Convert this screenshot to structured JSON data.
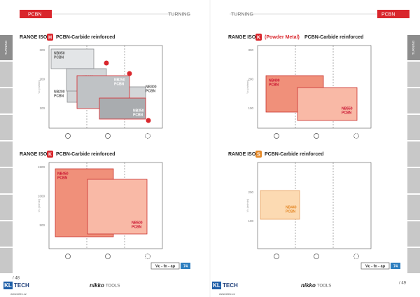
{
  "header": {
    "left": {
      "section": "PCBN",
      "topic": "TURNING"
    },
    "right": {
      "topic": "TURNING",
      "section": "PCBN"
    }
  },
  "side_tab": "TURNING",
  "panels": [
    {
      "title": "RANGE ISO",
      "iso": "H",
      "subtitle": "PCBN-Carbide reinforced",
      "y_axis": "Vc (m/min)",
      "yticks": [
        "300",
        "200",
        "100"
      ],
      "grades": [
        {
          "name": "NB050",
          "material": "PCBN"
        },
        {
          "name": "NB200",
          "material": "PCBN"
        },
        {
          "name": "NB150",
          "material": "PCBN"
        },
        {
          "name": "NB300",
          "material": "PCBN"
        },
        {
          "name": "NB250",
          "material": "PCBN"
        },
        {
          "name": "NB350",
          "material": "PCBN"
        }
      ]
    },
    {
      "title": "RANGE ISO",
      "iso": "K",
      "note": "(Powder Metal)",
      "subtitle": "PCBN-Carbide reinforced",
      "y_axis": "Vc (m/min)",
      "yticks": [
        "300",
        "200",
        "100"
      ],
      "grades": [
        {
          "name": "NB400",
          "material": "PCBN"
        },
        {
          "name": "NB550",
          "material": "PCBN"
        }
      ]
    },
    {
      "title": "RANGE ISO",
      "iso": "K",
      "subtitle": "PCBN-Carbide reinforced",
      "y_axis": "Vc (m/min)",
      "yticks": [
        "1500",
        "1000",
        "500"
      ],
      "grades": [
        {
          "name": "NB450",
          "material": "PCBN"
        },
        {
          "name": "NB500",
          "material": "PCBN"
        }
      ]
    },
    {
      "title": "RANGE ISO",
      "iso": "S",
      "subtitle": "PCBN-Carbide reinforced",
      "y_axis": "Vc (m/min)",
      "yticks": [
        "200",
        "100"
      ],
      "grades": [
        {
          "name": "NB440",
          "material": "PCBN"
        }
      ]
    }
  ],
  "footer": {
    "left": {
      "formula": "Vc - fn - ap",
      "page_ref": "74",
      "page": "/ 48"
    },
    "right": {
      "formula": "Vc - fn - ap",
      "page_ref": "74",
      "page": "/ 49"
    },
    "brand_a": "KL",
    "brand_b": "TECH",
    "url": "www.kltec.cz",
    "partner": "nikko",
    "partner_suffix": "TOOLS"
  }
}
